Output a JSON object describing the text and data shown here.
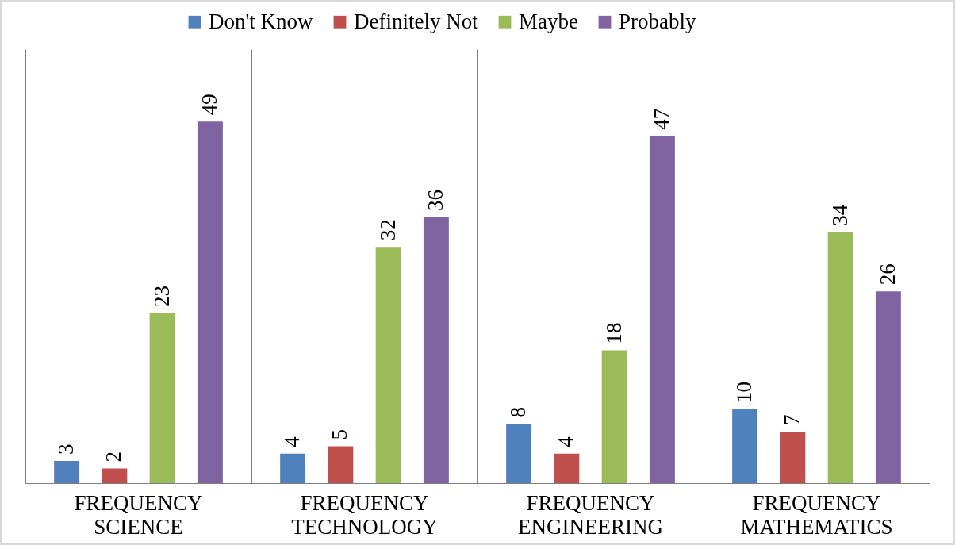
{
  "chart_data": {
    "type": "bar",
    "categories": [
      "FREQUENCY SCIENCE",
      "FREQUENCY TECHNOLOGY",
      "FREQUENCY ENGINEERING",
      "FREQUENCY MATHEMATICS"
    ],
    "series": [
      {
        "name": "Don't Know",
        "color": "#4f81bd",
        "values": [
          3,
          4,
          8,
          10
        ]
      },
      {
        "name": "Definitely Not",
        "color": "#c0504d",
        "values": [
          2,
          5,
          4,
          7
        ]
      },
      {
        "name": "Maybe",
        "color": "#9bbb59",
        "values": [
          23,
          32,
          18,
          34
        ]
      },
      {
        "name": "Probably",
        "color": "#8064a2",
        "values": [
          49,
          36,
          47,
          26
        ]
      }
    ],
    "data_labels": true,
    "legend": "top",
    "grid": "x"
  }
}
